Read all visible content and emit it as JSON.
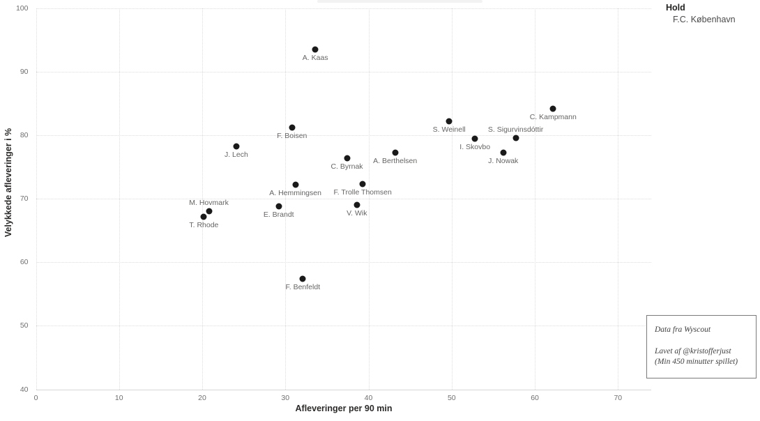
{
  "legend": {
    "title": "Hold",
    "items": [
      {
        "label": "F.C. København",
        "color": "#1a1a1a"
      }
    ]
  },
  "annotation_box": {
    "line1": "Data fra Wyscout",
    "line2": "Lavet af @kristofferjust",
    "line3": "(Min 450 minutter spillet)"
  },
  "chart_data": {
    "type": "scatter",
    "title": "",
    "xlabel": "Afleveringer per 90 min",
    "ylabel": "Velykkede afleveringer i %",
    "xlim": [
      0,
      74
    ],
    "ylim": [
      40,
      100
    ],
    "x_ticks": [
      0,
      10,
      20,
      30,
      40,
      50,
      60,
      70
    ],
    "y_ticks": [
      40,
      50,
      60,
      70,
      80,
      90,
      100
    ],
    "grid": "dotted",
    "grid_color": "#dcdcdc",
    "legend_position": "top-right",
    "series": [
      {
        "name": "F.C. København",
        "color": "#1a1a1a",
        "points": [
          {
            "label": "A. Kaas",
            "x": 33.6,
            "y": 93.5,
            "label_position": "below"
          },
          {
            "label": "C. Kampmann",
            "x": 62.2,
            "y": 84.2,
            "label_position": "below"
          },
          {
            "label": "S. Weinell",
            "x": 49.7,
            "y": 82.2,
            "label_position": "below"
          },
          {
            "label": "F. Boisen",
            "x": 30.8,
            "y": 81.2,
            "label_position": "below"
          },
          {
            "label": "S. Sigurvinsdóttir",
            "x": 57.7,
            "y": 79.5,
            "label_position": "above"
          },
          {
            "label": "I. Skovbo",
            "x": 52.8,
            "y": 79.4,
            "label_position": "below"
          },
          {
            "label": "J. Lech",
            "x": 24.1,
            "y": 78.2,
            "label_position": "below"
          },
          {
            "label": "A. Berthelsen",
            "x": 43.2,
            "y": 77.2,
            "label_position": "below"
          },
          {
            "label": "J. Nowak",
            "x": 56.2,
            "y": 77.2,
            "label_position": "below"
          },
          {
            "label": "C. Byrnak",
            "x": 37.4,
            "y": 76.4,
            "label_position": "below"
          },
          {
            "label": "F. Trolle Thomsen",
            "x": 39.3,
            "y": 72.3,
            "label_position": "below"
          },
          {
            "label": "A. Hemmingsen",
            "x": 31.2,
            "y": 72.2,
            "label_position": "below"
          },
          {
            "label": "V. Wik",
            "x": 38.6,
            "y": 69.0,
            "label_position": "below"
          },
          {
            "label": "E. Brandt",
            "x": 29.2,
            "y": 68.8,
            "label_position": "below"
          },
          {
            "label": "M. Hovmark",
            "x": 20.8,
            "y": 68.0,
            "label_position": "above"
          },
          {
            "label": "T. Rhode",
            "x": 20.2,
            "y": 67.1,
            "label_position": "below"
          },
          {
            "label": "F. Benfeldt",
            "x": 32.1,
            "y": 57.4,
            "label_position": "below"
          }
        ]
      }
    ]
  }
}
